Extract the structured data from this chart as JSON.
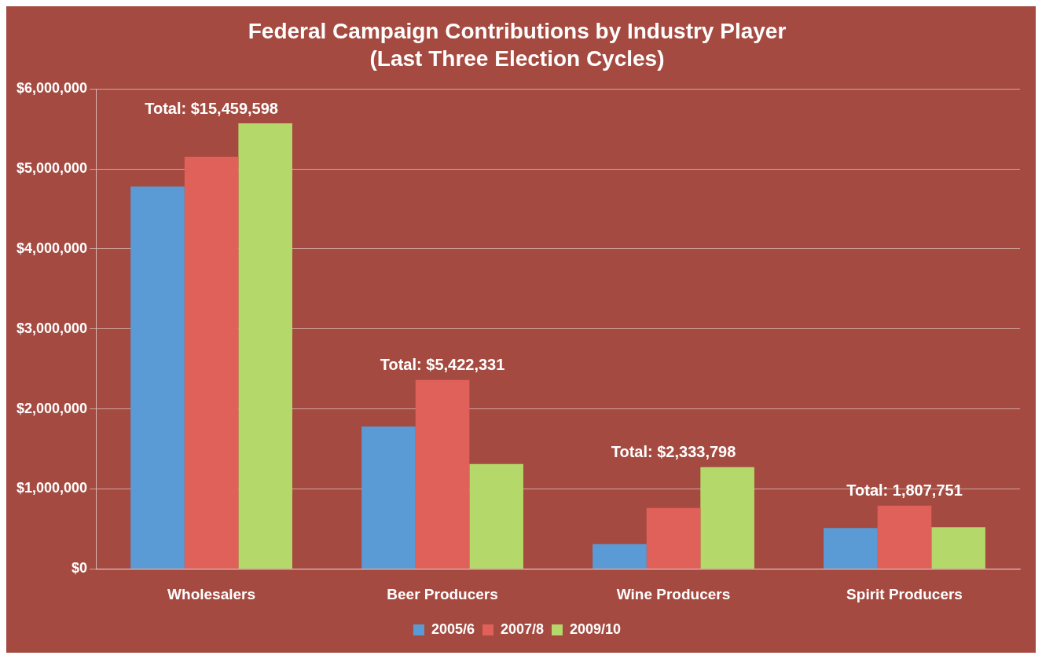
{
  "chart_data": {
    "type": "bar",
    "title": "Federal Campaign Contributions by Industry Player",
    "subtitle": "(Last Three Election Cycles)",
    "categories": [
      "Wholesalers",
      "Beer Producers",
      "Wine Producers",
      "Spirit Producers"
    ],
    "series": [
      {
        "name": "2005/6",
        "color": "#5b9bd5",
        "values": [
          4780000,
          1780000,
          310000,
          510000
        ]
      },
      {
        "name": "2007/8",
        "color": "#e0605a",
        "values": [
          5150000,
          2360000,
          760000,
          790000
        ]
      },
      {
        "name": "2009/10",
        "color": "#b5d86a",
        "values": [
          5570000,
          1310000,
          1270000,
          520000
        ]
      }
    ],
    "ylim": [
      0,
      6000000
    ],
    "yticks": [
      {
        "value": 0,
        "label": "$0"
      },
      {
        "value": 1000000,
        "label": "$1,000,000"
      },
      {
        "value": 2000000,
        "label": "$2,000,000"
      },
      {
        "value": 3000000,
        "label": "$3,000,000"
      },
      {
        "value": 4000000,
        "label": "$4,000,000"
      },
      {
        "value": 5000000,
        "label": "$5,000,000"
      },
      {
        "value": 6000000,
        "label": "$6,000,000"
      }
    ],
    "grid": "y",
    "legend": "bottom",
    "annotations": [
      "Total: $15,459,598",
      "Total: $5,422,331",
      "Total: $2,333,798",
      "Total: 1,807,751"
    ]
  }
}
